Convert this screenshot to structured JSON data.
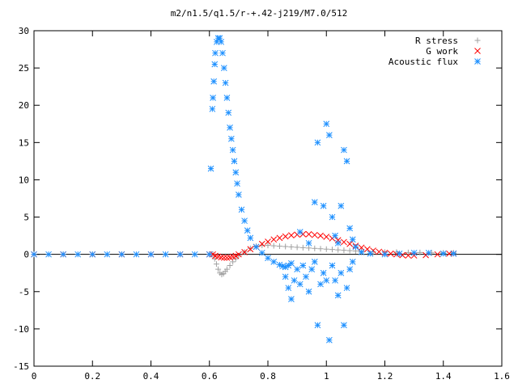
{
  "chart_data": {
    "type": "scatter",
    "title": "m2/n1.5/q1.5/r-+.42-j219/M7.0/512",
    "xlabel": "",
    "ylabel": "",
    "xlim": [
      0,
      1.6
    ],
    "ylim": [
      -15,
      30
    ],
    "x_ticks": [
      0,
      0.2,
      0.4,
      0.6,
      0.8,
      1,
      1.2,
      1.4,
      1.6
    ],
    "x_tick_labels": [
      "0",
      "0.2",
      "0.4",
      "0.6",
      "0.8",
      "1",
      "1.2",
      "1.4",
      "1.6"
    ],
    "y_ticks": [
      -15,
      -10,
      -5,
      0,
      5,
      10,
      15,
      20,
      25,
      30
    ],
    "y_tick_labels": [
      "-15",
      "-10",
      "-5",
      "0",
      "5",
      "10",
      "15",
      "20",
      "25",
      "30"
    ],
    "grid": false,
    "legend_position": "top-right",
    "series": [
      {
        "name": "R stress",
        "marker": "plus",
        "color": "#a0a0a0",
        "points": [
          [
            0,
            0
          ],
          [
            0.1,
            0
          ],
          [
            0.2,
            0
          ],
          [
            0.3,
            0
          ],
          [
            0.4,
            0
          ],
          [
            0.5,
            0
          ],
          [
            0.6,
            0
          ],
          [
            0.612,
            0
          ],
          [
            0.618,
            -0.6
          ],
          [
            0.624,
            -1.3
          ],
          [
            0.63,
            -2.0
          ],
          [
            0.636,
            -2.5
          ],
          [
            0.642,
            -2.7
          ],
          [
            0.648,
            -2.6
          ],
          [
            0.654,
            -2.3
          ],
          [
            0.66,
            -2.0
          ],
          [
            0.67,
            -1.5
          ],
          [
            0.68,
            -1.0
          ],
          [
            0.69,
            -0.6
          ],
          [
            0.7,
            -0.2
          ],
          [
            0.72,
            0.3
          ],
          [
            0.74,
            0.8
          ],
          [
            0.76,
            1.1
          ],
          [
            0.78,
            1.2
          ],
          [
            0.8,
            1.2
          ],
          [
            0.82,
            1.15
          ],
          [
            0.84,
            1.1
          ],
          [
            0.86,
            1.05
          ],
          [
            0.88,
            1.0
          ],
          [
            0.9,
            0.95
          ],
          [
            0.92,
            0.9
          ],
          [
            0.94,
            0.85
          ],
          [
            0.96,
            0.8
          ],
          [
            0.98,
            0.75
          ],
          [
            1.0,
            0.7
          ],
          [
            1.02,
            0.65
          ],
          [
            1.04,
            0.6
          ],
          [
            1.06,
            0.55
          ],
          [
            1.08,
            0.5
          ],
          [
            1.1,
            0.45
          ],
          [
            1.12,
            0.4
          ],
          [
            1.16,
            0.35
          ],
          [
            1.2,
            0.3
          ],
          [
            1.24,
            0.3
          ],
          [
            1.28,
            0.25
          ],
          [
            1.32,
            0.25
          ],
          [
            1.36,
            0.2
          ],
          [
            1.4,
            0.2
          ],
          [
            1.435,
            0.2
          ]
        ]
      },
      {
        "name": "G work",
        "marker": "cross",
        "color": "#ff0000",
        "points": [
          [
            0,
            0
          ],
          [
            0.1,
            0
          ],
          [
            0.2,
            0
          ],
          [
            0.3,
            0
          ],
          [
            0.4,
            0
          ],
          [
            0.5,
            0
          ],
          [
            0.6,
            0
          ],
          [
            0.612,
            0
          ],
          [
            0.62,
            -0.2
          ],
          [
            0.63,
            -0.3
          ],
          [
            0.64,
            -0.4
          ],
          [
            0.65,
            -0.45
          ],
          [
            0.66,
            -0.45
          ],
          [
            0.67,
            -0.4
          ],
          [
            0.68,
            -0.3
          ],
          [
            0.69,
            -0.2
          ],
          [
            0.7,
            0.0
          ],
          [
            0.72,
            0.3
          ],
          [
            0.74,
            0.7
          ],
          [
            0.76,
            1.0
          ],
          [
            0.78,
            1.4
          ],
          [
            0.8,
            1.7
          ],
          [
            0.82,
            2.0
          ],
          [
            0.84,
            2.2
          ],
          [
            0.86,
            2.4
          ],
          [
            0.88,
            2.55
          ],
          [
            0.9,
            2.65
          ],
          [
            0.92,
            2.7
          ],
          [
            0.94,
            2.7
          ],
          [
            0.96,
            2.6
          ],
          [
            0.98,
            2.5
          ],
          [
            1.0,
            2.35
          ],
          [
            1.02,
            2.15
          ],
          [
            1.04,
            1.9
          ],
          [
            1.06,
            1.65
          ],
          [
            1.08,
            1.4
          ],
          [
            1.1,
            1.15
          ],
          [
            1.12,
            0.9
          ],
          [
            1.14,
            0.7
          ],
          [
            1.16,
            0.5
          ],
          [
            1.18,
            0.35
          ],
          [
            1.2,
            0.2
          ],
          [
            1.22,
            0.1
          ],
          [
            1.24,
            0.0
          ],
          [
            1.26,
            -0.1
          ],
          [
            1.28,
            -0.15
          ],
          [
            1.3,
            -0.15
          ],
          [
            1.34,
            -0.1
          ],
          [
            1.38,
            0.0
          ],
          [
            1.42,
            0.1
          ],
          [
            1.435,
            0.1
          ]
        ]
      },
      {
        "name": "Acoustic flux",
        "marker": "star",
        "color": "#1e90ff",
        "points": [
          [
            0,
            0
          ],
          [
            0.05,
            0
          ],
          [
            0.1,
            0
          ],
          [
            0.15,
            0
          ],
          [
            0.2,
            0
          ],
          [
            0.25,
            0
          ],
          [
            0.3,
            0
          ],
          [
            0.35,
            0
          ],
          [
            0.4,
            0
          ],
          [
            0.45,
            0
          ],
          [
            0.5,
            0
          ],
          [
            0.55,
            0
          ],
          [
            0.6,
            0
          ],
          [
            0.605,
            11.5
          ],
          [
            0.61,
            19.5
          ],
          [
            0.612,
            21.0
          ],
          [
            0.615,
            23.2
          ],
          [
            0.618,
            25.5
          ],
          [
            0.62,
            27.0
          ],
          [
            0.625,
            28.5
          ],
          [
            0.63,
            29.0
          ],
          [
            0.635,
            29.0
          ],
          [
            0.64,
            28.5
          ],
          [
            0.645,
            27.0
          ],
          [
            0.65,
            25.0
          ],
          [
            0.655,
            23.0
          ],
          [
            0.66,
            21.0
          ],
          [
            0.665,
            19.0
          ],
          [
            0.67,
            17.0
          ],
          [
            0.675,
            15.5
          ],
          [
            0.68,
            14.0
          ],
          [
            0.685,
            12.5
          ],
          [
            0.69,
            11.0
          ],
          [
            0.695,
            9.5
          ],
          [
            0.7,
            8.0
          ],
          [
            0.71,
            6.0
          ],
          [
            0.72,
            4.5
          ],
          [
            0.73,
            3.2
          ],
          [
            0.74,
            2.2
          ],
          [
            0.76,
            1.0
          ],
          [
            0.78,
            0.2
          ],
          [
            0.8,
            -0.5
          ],
          [
            0.82,
            -1.0
          ],
          [
            0.84,
            -1.4
          ],
          [
            0.85,
            -1.6
          ],
          [
            0.86,
            -1.7
          ],
          [
            0.87,
            -1.5
          ],
          [
            0.88,
            -1.2
          ],
          [
            0.86,
            -3.0
          ],
          [
            0.87,
            -4.5
          ],
          [
            0.88,
            -6.0
          ],
          [
            0.89,
            -3.5
          ],
          [
            0.9,
            -2.0
          ],
          [
            0.91,
            -4.0
          ],
          [
            0.92,
            -1.5
          ],
          [
            0.93,
            -3.0
          ],
          [
            0.94,
            -5.0
          ],
          [
            0.95,
            -2.0
          ],
          [
            0.96,
            -1.0
          ],
          [
            0.97,
            -9.5
          ],
          [
            0.98,
            -4.0
          ],
          [
            0.99,
            -2.5
          ],
          [
            1.0,
            -3.5
          ],
          [
            1.01,
            -11.5
          ],
          [
            1.02,
            -1.5
          ],
          [
            1.03,
            -3.5
          ],
          [
            1.04,
            -5.5
          ],
          [
            1.05,
            -2.5
          ],
          [
            1.06,
            -9.5
          ],
          [
            1.07,
            -4.5
          ],
          [
            1.08,
            -2.0
          ],
          [
            1.09,
            -1.0
          ],
          [
            0.91,
            3.0
          ],
          [
            0.94,
            1.5
          ],
          [
            0.96,
            7.0
          ],
          [
            0.97,
            15.0
          ],
          [
            0.99,
            6.5
          ],
          [
            1.0,
            17.5
          ],
          [
            1.01,
            16.0
          ],
          [
            1.02,
            5.0
          ],
          [
            1.03,
            2.5
          ],
          [
            1.04,
            1.5
          ],
          [
            1.05,
            6.5
          ],
          [
            1.06,
            14.0
          ],
          [
            1.07,
            12.5
          ],
          [
            1.08,
            3.5
          ],
          [
            1.09,
            2.0
          ],
          [
            1.1,
            1.0
          ],
          [
            1.12,
            0.3
          ],
          [
            1.15,
            0.1
          ],
          [
            1.2,
            0.0
          ],
          [
            1.25,
            0.1
          ],
          [
            1.3,
            0.2
          ],
          [
            1.35,
            0.2
          ],
          [
            1.4,
            0.1
          ],
          [
            1.435,
            0.1
          ]
        ]
      }
    ]
  }
}
